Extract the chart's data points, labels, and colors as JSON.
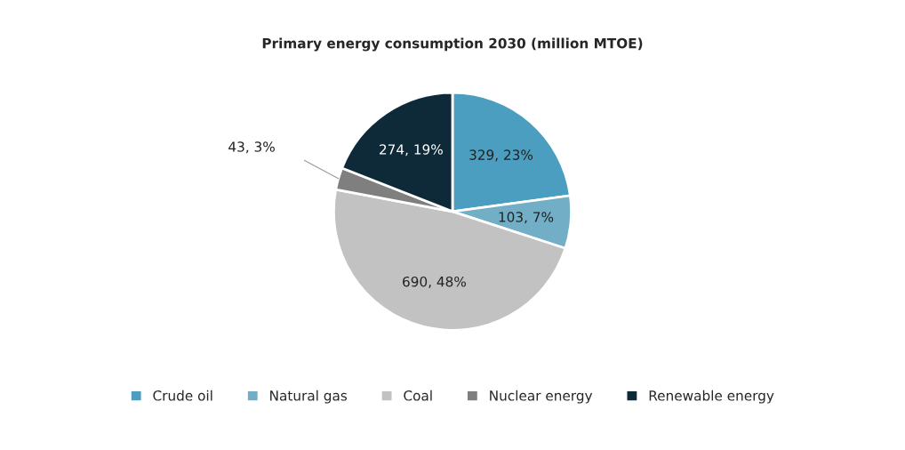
{
  "chart_data": {
    "type": "pie",
    "title": "Primary energy consumption 2030 (million MTOE)",
    "categories": [
      "Crude oil",
      "Natural gas",
      "Coal",
      "Nuclear energy",
      "Renewable energy"
    ],
    "values": [
      329,
      103,
      690,
      43,
      274
    ],
    "value_labels": [
      "329, 23%",
      "103, 7%",
      "690, 48%",
      "43, 3%",
      "274, 19%"
    ],
    "colors": [
      "#4b9ec0",
      "#72afc6",
      "#c2c2c2",
      "#7f7f7f",
      "#0e2a38"
    ],
    "legend": "bottom"
  }
}
